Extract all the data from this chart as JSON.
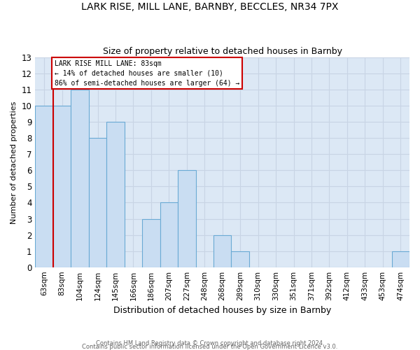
{
  "title1": "LARK RISE, MILL LANE, BARNBY, BECCLES, NR34 7PX",
  "title2": "Size of property relative to detached houses in Barnby",
  "xlabel": "Distribution of detached houses by size in Barnby",
  "ylabel": "Number of detached properties",
  "categories": [
    "63sqm",
    "83sqm",
    "104sqm",
    "124sqm",
    "145sqm",
    "166sqm",
    "186sqm",
    "207sqm",
    "227sqm",
    "248sqm",
    "268sqm",
    "289sqm",
    "310sqm",
    "330sqm",
    "351sqm",
    "371sqm",
    "392sqm",
    "412sqm",
    "433sqm",
    "453sqm",
    "474sqm"
  ],
  "values": [
    10,
    10,
    11,
    8,
    9,
    0,
    3,
    4,
    6,
    0,
    2,
    1,
    0,
    0,
    0,
    0,
    0,
    0,
    0,
    0,
    1
  ],
  "bar_color": "#c9ddf2",
  "bar_edge_color": "#6aaad4",
  "grid_color": "#c8d4e4",
  "plot_bg_color": "#dce8f5",
  "fig_bg_color": "#ffffff",
  "red_line_index": 1,
  "red_line_color": "#cc0000",
  "annotation_line1": "LARK RISE MILL LANE: 83sqm",
  "annotation_line2": "← 14% of detached houses are smaller (10)",
  "annotation_line3": "86% of semi-detached houses are larger (64) →",
  "annotation_box_color": "#ffffff",
  "annotation_box_edge": "#cc0000",
  "ylim_max": 13,
  "yticks": [
    0,
    1,
    2,
    3,
    4,
    5,
    6,
    7,
    8,
    9,
    10,
    11,
    12,
    13
  ],
  "footer1": "Contains HM Land Registry data © Crown copyright and database right 2024.",
  "footer2": "Contains public sector information licensed under the Open Government Licence v3.0."
}
